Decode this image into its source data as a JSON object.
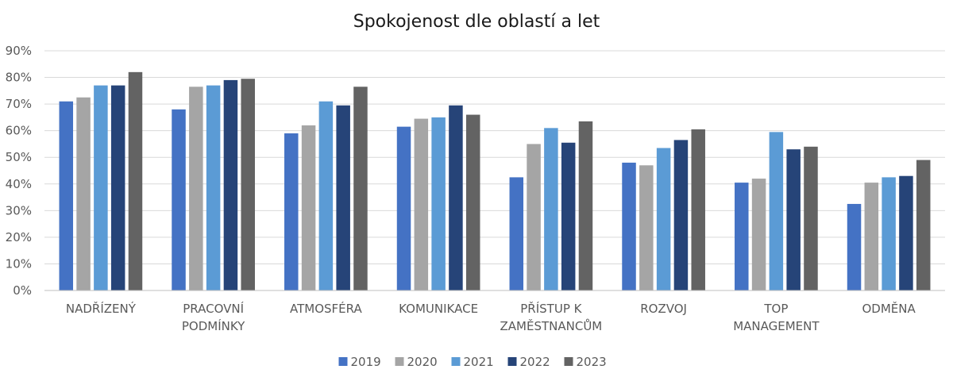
{
  "chart_data": {
    "type": "bar",
    "title": "Spokojenost dle oblastí a let",
    "xlabel": "",
    "ylabel": "",
    "ylim": [
      0,
      90
    ],
    "y_ticks": [
      "0%",
      "10%",
      "20%",
      "30%",
      "40%",
      "50%",
      "60%",
      "70%",
      "80%",
      "90%"
    ],
    "grid": true,
    "legend_position": "bottom",
    "categories": [
      [
        "NADŘÍZENÝ"
      ],
      [
        "PRACOVNÍ",
        "PODMÍNKY"
      ],
      [
        "ATMOSFÉRA"
      ],
      [
        "KOMUNIKACE"
      ],
      [
        "PŘÍSTUP K",
        "ZAMĚSTNANCŮM"
      ],
      [
        "ROZVOJ"
      ],
      [
        "TOP",
        "MANAGEMENT"
      ],
      [
        "ODMĚNA"
      ]
    ],
    "series": [
      {
        "name": "2019",
        "color": "#4472c4",
        "values": [
          71,
          68,
          59,
          61.5,
          42.5,
          48,
          40.5,
          32.5
        ]
      },
      {
        "name": "2020",
        "color": "#a5a5a5",
        "values": [
          72.5,
          76.5,
          62,
          64.5,
          55,
          47,
          42,
          40.5
        ]
      },
      {
        "name": "2021",
        "color": "#5b9bd5",
        "values": [
          77,
          77,
          71,
          65,
          61,
          53.5,
          59.5,
          42.5
        ]
      },
      {
        "name": "2022",
        "color": "#264478",
        "values": [
          77,
          79,
          69.5,
          69.5,
          55.5,
          56.5,
          53,
          43
        ]
      },
      {
        "name": "2023",
        "color": "#636363",
        "values": [
          82,
          79.5,
          76.5,
          66,
          63.5,
          60.5,
          54,
          49
        ]
      }
    ]
  }
}
